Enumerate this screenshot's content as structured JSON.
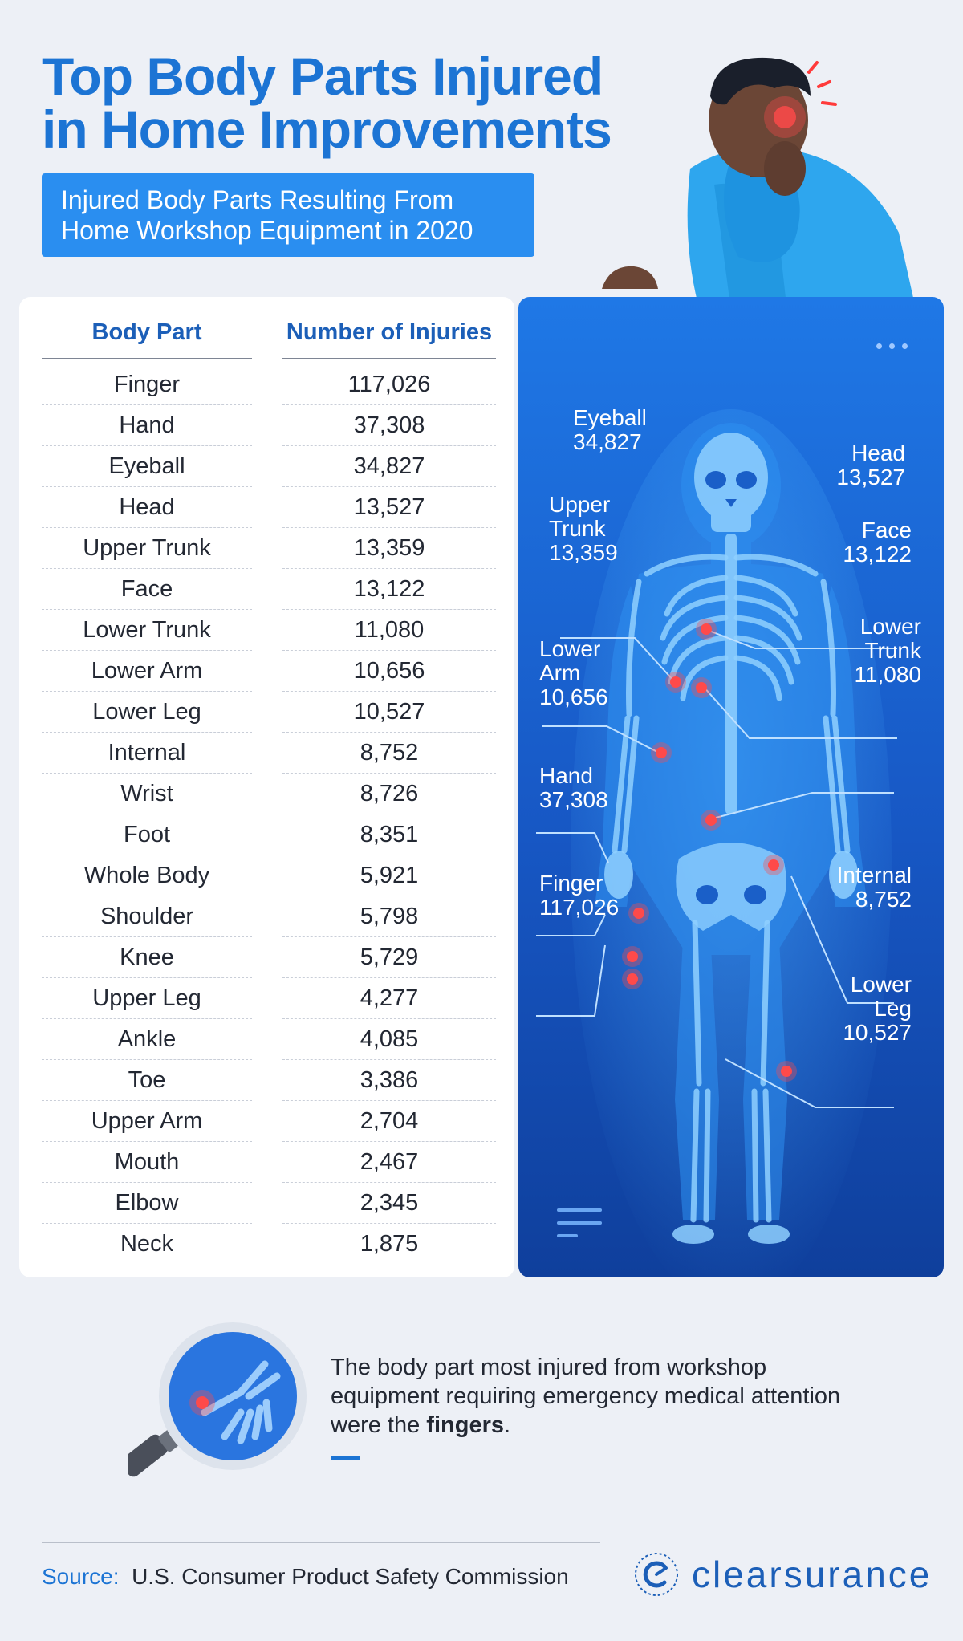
{
  "header": {
    "title_line1": "Top Body Parts Injured",
    "title_line2": "in Home Improvements",
    "subtitle_line1": "Injured Body Parts Resulting From",
    "subtitle_line2": "Home Workshop Equipment in 2020"
  },
  "table": {
    "headers": [
      "Body Part",
      "Number of Injuries"
    ],
    "rows": [
      {
        "part": "Finger",
        "count": "117,026"
      },
      {
        "part": "Hand",
        "count": "37,308"
      },
      {
        "part": "Eyeball",
        "count": "34,827"
      },
      {
        "part": "Head",
        "count": "13,527"
      },
      {
        "part": "Upper Trunk",
        "count": "13,359"
      },
      {
        "part": "Face",
        "count": "13,122"
      },
      {
        "part": "Lower Trunk",
        "count": "11,080"
      },
      {
        "part": "Lower Arm",
        "count": "10,656"
      },
      {
        "part": "Lower Leg",
        "count": "10,527"
      },
      {
        "part": "Internal",
        "count": "8,752"
      },
      {
        "part": "Wrist",
        "count": "8,726"
      },
      {
        "part": "Foot",
        "count": "8,351"
      },
      {
        "part": "Whole Body",
        "count": "5,921"
      },
      {
        "part": "Shoulder",
        "count": "5,798"
      },
      {
        "part": "Knee",
        "count": "5,729"
      },
      {
        "part": "Upper Leg",
        "count": "4,277"
      },
      {
        "part": "Ankle",
        "count": "4,085"
      },
      {
        "part": "Toe",
        "count": "3,386"
      },
      {
        "part": "Upper Arm",
        "count": "2,704"
      },
      {
        "part": "Mouth",
        "count": "2,467"
      },
      {
        "part": "Elbow",
        "count": "2,345"
      },
      {
        "part": "Neck",
        "count": "1,875"
      }
    ]
  },
  "skeleton_labels": {
    "eyeball": {
      "name": "Eyeball",
      "value": "34,827"
    },
    "head": {
      "name": "Head",
      "value": "13,527"
    },
    "upper_trunk": {
      "name1": "Upper",
      "name2": "Trunk",
      "value": "13,359"
    },
    "face": {
      "name": "Face",
      "value": "13,122"
    },
    "lower_arm": {
      "name1": "Lower",
      "name2": "Arm",
      "value": "10,656"
    },
    "lower_trunk": {
      "name1": "Lower",
      "name2": "Trunk",
      "value": "11,080"
    },
    "hand": {
      "name": "Hand",
      "value": "37,308"
    },
    "internal": {
      "name": "Internal",
      "value": "8,752"
    },
    "finger": {
      "name": "Finger",
      "value": "117,026"
    },
    "lower_leg": {
      "name1": "Lower",
      "name2": "Leg",
      "value": "10,527"
    }
  },
  "note": {
    "text": "The body part most injured from workshop equipment requiring emergency medical attention were the ",
    "bold": "fingers",
    "end": "."
  },
  "footer": {
    "source_label": "Source:",
    "source_value": "U.S. Consumer Product Safety Commission",
    "brand": "clearsurance"
  },
  "colors": {
    "title": "#1c74d4",
    "subtitle_bg": "#2a8ef0",
    "panel_top": "#1f78e6",
    "panel_bottom": "#0f3f9c",
    "injury_marker": "#ff4a4a"
  }
}
